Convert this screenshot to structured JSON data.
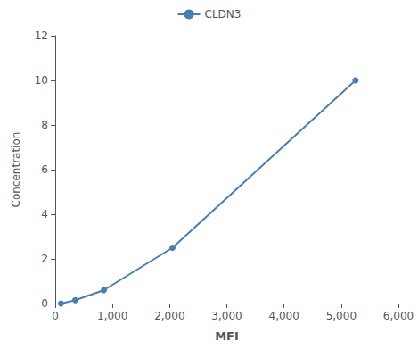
{
  "chart_data": {
    "type": "line",
    "xlabel": "MFI",
    "ylabel": "Concentration",
    "x": [
      100,
      350,
      850,
      2050,
      5250
    ],
    "series": [
      {
        "name": "CLDN3",
        "color": "#4a7db5",
        "marker": "circle",
        "values": [
          0.0,
          0.15,
          0.6,
          2.5,
          10.0
        ]
      }
    ],
    "xlim": [
      0,
      6000
    ],
    "xticks": [
      0,
      1000,
      2000,
      3000,
      4000,
      5000,
      6000
    ],
    "ylim": [
      0,
      12
    ],
    "yticks": [
      0,
      2,
      4,
      6,
      8,
      10,
      12
    ],
    "grid": false,
    "legend": "top"
  }
}
